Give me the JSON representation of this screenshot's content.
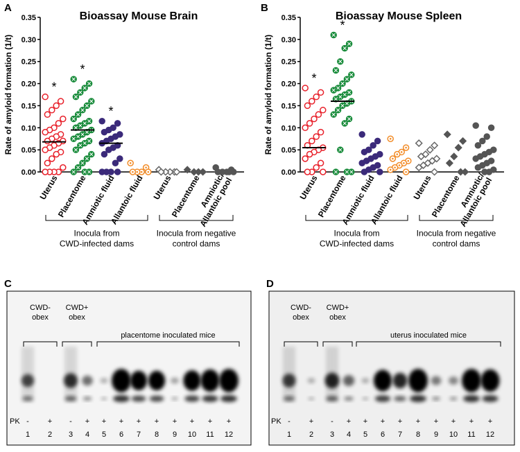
{
  "panels": [
    "A",
    "B",
    "C",
    "D"
  ],
  "chart_data": [
    {
      "type": "dotplot",
      "title": "Bioassay Mouse Brain",
      "ylabel": "Rate of amyloid formation (1/t)",
      "categories": [
        "Uterus",
        "Placentome",
        "Amniotic fluid",
        "Allantoic fluid",
        "Uterus",
        "Placentome",
        [
          "Amniotic/",
          "Allantoic pool"
        ]
      ],
      "points": [
        [
          0.17,
          0.16,
          0.15,
          0.14,
          0.13,
          0.12,
          0.11,
          0.1,
          0.095,
          0.09,
          0.085,
          0.08,
          0.075,
          0.07,
          0.07,
          0.065,
          0.06,
          0.055,
          0.05,
          0.045,
          0.04,
          0.03,
          0.02,
          0.01,
          0,
          0,
          0,
          0
        ],
        [
          0.21,
          0.2,
          0.19,
          0.18,
          0.17,
          0.16,
          0.15,
          0.14,
          0.13,
          0.12,
          0.115,
          0.11,
          0.105,
          0.1,
          0.095,
          0.09,
          0.085,
          0.08,
          0.075,
          0.07,
          0.065,
          0.06,
          0.05,
          0.04,
          0.03,
          0.02,
          0.01,
          0,
          0,
          0
        ],
        [
          0.115,
          0.11,
          0.1,
          0.095,
          0.09,
          0.085,
          0.08,
          0.075,
          0.07,
          0.065,
          0.06,
          0.055,
          0.05,
          0.04,
          0.03,
          0.02,
          0,
          0,
          0,
          0
        ],
        [
          0.02,
          0.01,
          0,
          0,
          0,
          0
        ],
        [
          0.005,
          0,
          0,
          0,
          0,
          0
        ],
        [
          0.005,
          0,
          0,
          0
        ],
        [
          0.01,
          0.005,
          0,
          0,
          0,
          0,
          0
        ]
      ],
      "medians": [
        0.068,
        0.095,
        0.065,
        null,
        null,
        null,
        null
      ],
      "colors": [
        "#e8202a",
        "#1a8c3c",
        "#3b2a7a",
        "#f28c28",
        "#666666",
        "#555555",
        "#555555"
      ],
      "markers": [
        "circle-open",
        "circle-cross",
        "circle",
        "circle-dot",
        "diamond-open",
        "diamond",
        "circle"
      ],
      "annotations": [
        "*",
        "*",
        "*",
        null,
        null,
        null,
        null
      ],
      "ylim": [
        0,
        0.35
      ],
      "yticks": [
        {
          "value": 0,
          "label": "0.00"
        },
        {
          "value": 0.05,
          "label": "0.05"
        },
        {
          "value": 0.1,
          "label": "0.10"
        },
        {
          "value": 0.15,
          "label": "0.15"
        },
        {
          "value": 0.2,
          "label": "0.20"
        },
        {
          "value": 0.25,
          "label": "0.25"
        },
        {
          "value": 0.3,
          "label": "0.30"
        },
        {
          "value": 0.35,
          "label": "0.35"
        }
      ],
      "groups": [
        {
          "label": [
            "Inocula from",
            "CWD-infected dams"
          ],
          "count": 4
        },
        {
          "label": [
            "Inocula from negative",
            "control dams"
          ],
          "count": 3
        }
      ]
    },
    {
      "type": "dotplot",
      "title": "Bioassay Mouse Spleen",
      "ylabel": "Rate of amyloid formation (1/t)",
      "categories": [
        "Uterus",
        "Placentome",
        "Amniotic fluid",
        "Allantoic fluid",
        "Uterus",
        "Placentome",
        [
          "Amniotic/",
          "Allantoic pool"
        ]
      ],
      "points": [
        [
          0.19,
          0.18,
          0.17,
          0.16,
          0.15,
          0.14,
          0.13,
          0.12,
          0.11,
          0.1,
          0.09,
          0.08,
          0.07,
          0.06,
          0.055,
          0.05,
          0.045,
          0.04,
          0.03,
          0.02,
          0.01,
          0,
          0,
          0
        ],
        [
          0.31,
          0.29,
          0.28,
          0.25,
          0.23,
          0.22,
          0.21,
          0.2,
          0.19,
          0.185,
          0.18,
          0.175,
          0.17,
          0.165,
          0.16,
          0.155,
          0.15,
          0.14,
          0.13,
          0.12,
          0.11,
          0.05,
          0,
          0,
          0
        ],
        [
          0.085,
          0.07,
          0.06,
          0.05,
          0.045,
          0.04,
          0.035,
          0.03,
          0.025,
          0.02,
          0.015,
          0.01,
          0.005,
          0,
          0
        ],
        [
          0.075,
          0.055,
          0.045,
          0.04,
          0.03,
          0.025,
          0.02,
          0.015,
          0.01,
          0.005,
          0
        ],
        [
          0.065,
          0.06,
          0.05,
          0.04,
          0.035,
          0.03,
          0.025,
          0.02,
          0.015,
          0.01,
          0
        ],
        [
          0.085,
          0.07,
          0.055,
          0.035,
          0.02,
          0,
          0
        ],
        [
          0.105,
          0.1,
          0.08,
          0.07,
          0.06,
          0.05,
          0.045,
          0.04,
          0.035,
          0.03,
          0.025,
          0.02,
          0.015,
          0.01,
          0.005,
          0,
          0
        ]
      ],
      "medians": [
        0.055,
        0.16,
        null,
        null,
        null,
        null,
        null
      ],
      "colors": [
        "#e8202a",
        "#1a8c3c",
        "#3b2a7a",
        "#f28c28",
        "#666666",
        "#555555",
        "#555555"
      ],
      "markers": [
        "circle-open",
        "circle-cross",
        "circle",
        "circle-dot",
        "diamond-open",
        "diamond",
        "circle"
      ],
      "annotations": [
        "*",
        "*",
        null,
        null,
        null,
        null,
        null
      ],
      "ylim": [
        0,
        0.35
      ],
      "yticks": [
        {
          "value": 0,
          "label": "0.00"
        },
        {
          "value": 0.05,
          "label": "0.05"
        },
        {
          "value": 0.1,
          "label": "0.10"
        },
        {
          "value": 0.15,
          "label": "0.15"
        },
        {
          "value": 0.2,
          "label": "0.20"
        },
        {
          "value": 0.25,
          "label": "0.25"
        },
        {
          "value": 0.3,
          "label": "0.30"
        },
        {
          "value": 0.35,
          "label": "0.35"
        }
      ],
      "groups": [
        {
          "label": [
            "Inocula from",
            "CWD-infected dams"
          ],
          "count": 4
        },
        {
          "label": [
            "Inocula from negative",
            "control dams"
          ],
          "count": 3
        }
      ]
    }
  ],
  "blots": [
    {
      "groups": [
        [
          "CWD-",
          "obex"
        ],
        [
          "CWD+",
          "obex"
        ],
        [
          "placentome inoculated mice"
        ]
      ],
      "pk_label": "PK",
      "pk": [
        "-",
        "+",
        "-",
        "+",
        "+",
        "+",
        "+",
        "+",
        "+",
        "+",
        "+",
        "+"
      ],
      "lanes": [
        "1",
        "2",
        "3",
        "4",
        "5",
        "6",
        "7",
        "8",
        "9",
        "10",
        "11",
        "12"
      ]
    },
    {
      "groups": [
        [
          "CWD-",
          "obex"
        ],
        [
          "CWD+",
          "obex"
        ],
        [
          "uterus inoculated mice"
        ]
      ],
      "pk_label": "PK",
      "pk": [
        "-",
        "+",
        "-",
        "+",
        "+",
        "+",
        "+",
        "+",
        "+",
        "+",
        "+",
        "+"
      ],
      "lanes": [
        "1",
        "2",
        "3",
        "4",
        "5",
        "6",
        "7",
        "8",
        "9",
        "10",
        "11",
        "12"
      ]
    }
  ]
}
